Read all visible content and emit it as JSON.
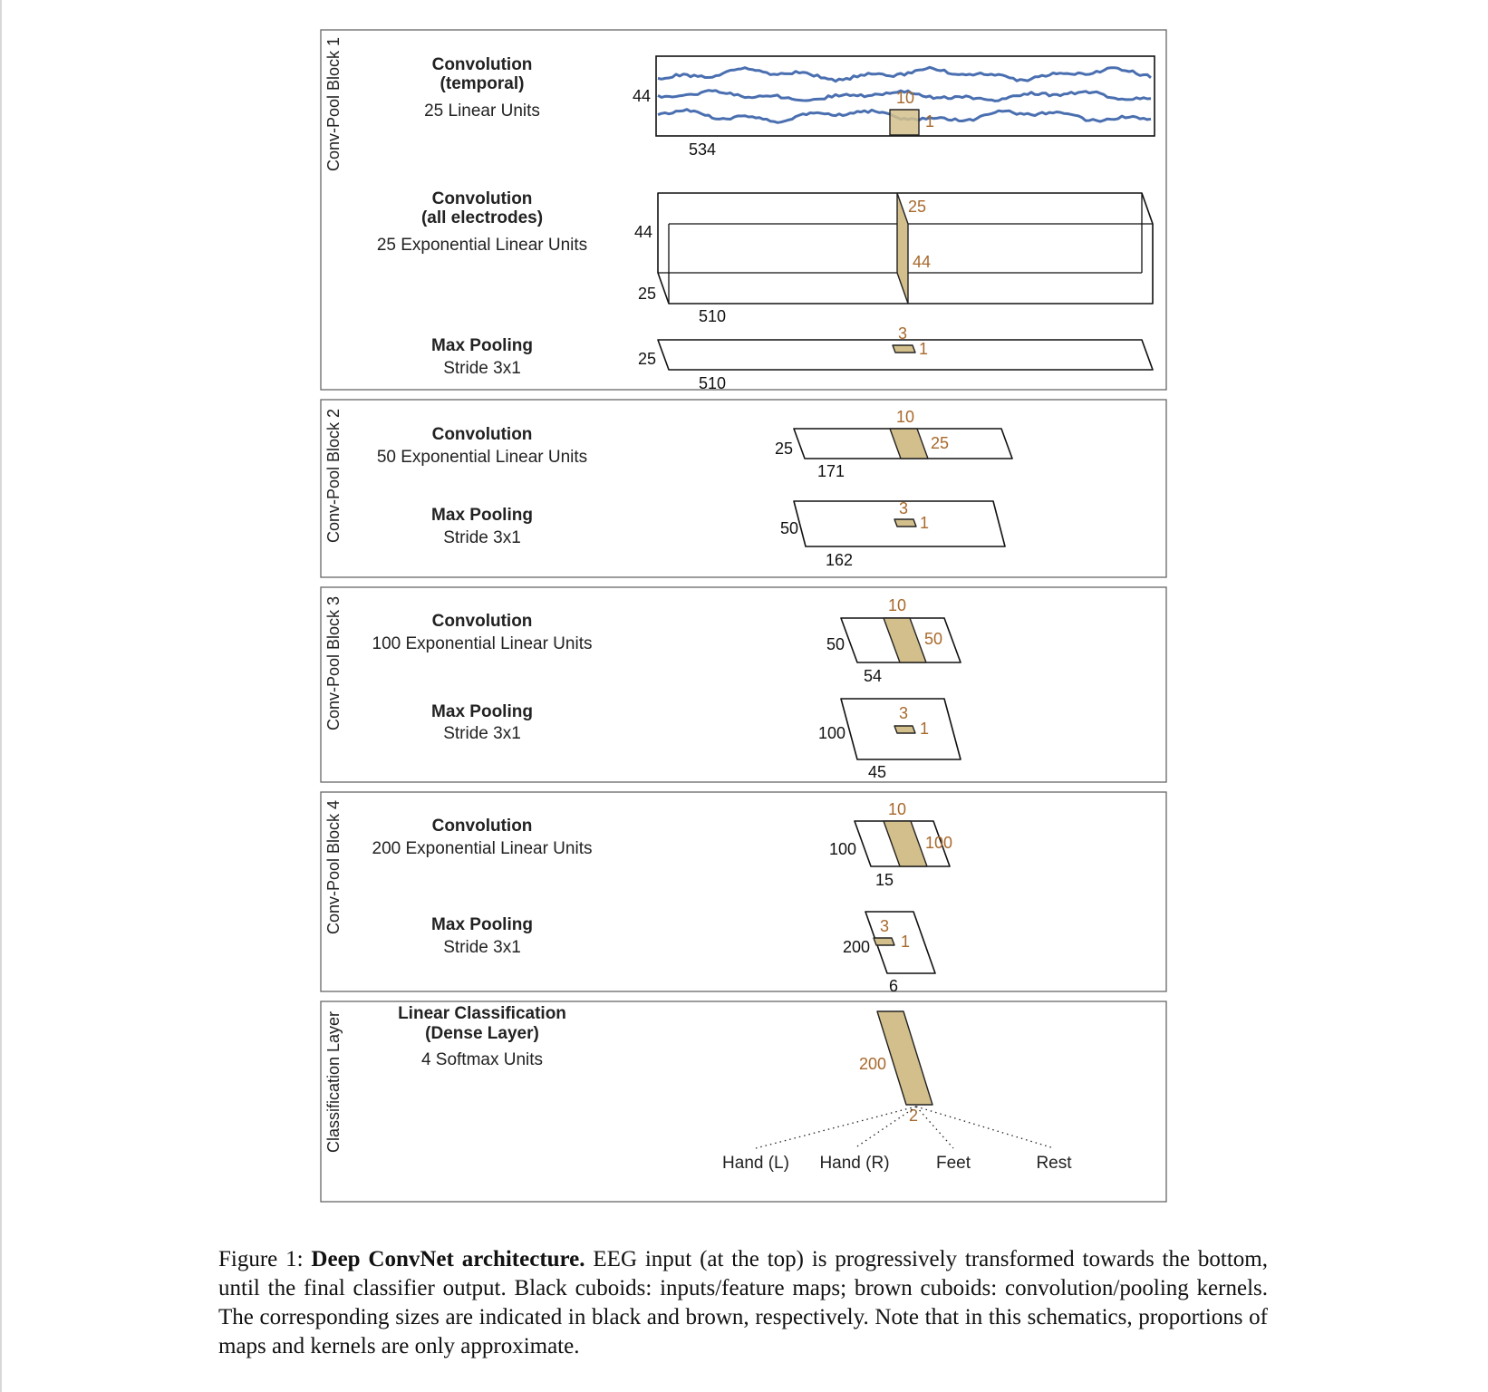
{
  "blocks": [
    {
      "label": "Conv-Pool Block 1"
    },
    {
      "label": "Conv-Pool Block 2"
    },
    {
      "label": "Conv-Pool Block 3"
    },
    {
      "label": "Conv-Pool Block 4"
    },
    {
      "label": "Classification Layer"
    }
  ],
  "layers": {
    "b1_conv_temporal": {
      "title_line1": "Convolution",
      "title_line2": "(temporal)",
      "units": "25 Linear Units"
    },
    "b1_conv_all": {
      "title_line1": "Convolution",
      "title_line2": "(all electrodes)",
      "units": "25 Exponential Linear Units"
    },
    "b1_pool": {
      "title": "Max Pooling",
      "stride": "Stride 3x1"
    },
    "b2_conv": {
      "title": "Convolution",
      "units": "50 Exponential Linear Units"
    },
    "b2_pool": {
      "title": "Max Pooling",
      "stride": "Stride 3x1"
    },
    "b3_conv": {
      "title": "Convolution",
      "units": "100 Exponential Linear  Units"
    },
    "b3_pool": {
      "title": "Max Pooling",
      "stride": "Stride 3x1"
    },
    "b4_conv": {
      "title": "Convolution",
      "units": "200 Exponential Linear Units"
    },
    "b4_pool": {
      "title": "Max Pooling",
      "stride": "Stride 3x1"
    },
    "classifier": {
      "title_line1": "Linear Classification",
      "title_line2": "(Dense Layer)",
      "units": "4 Softmax Units"
    }
  },
  "sizes": {
    "input_h": "44",
    "input_w": "534",
    "k1_w": "10",
    "k1_h": "1",
    "c2_h": "44",
    "c2_d": "25",
    "c2_w": "510",
    "k2_d": "25",
    "k2_h": "44",
    "p1_d": "25",
    "p1_w": "510",
    "pk1_w": "3",
    "pk1_h": "1",
    "c3_d": "25",
    "c3_w": "171",
    "k3_w": "10",
    "k3_d": "25",
    "p2_d": "50",
    "p2_w": "162",
    "pk2_w": "3",
    "pk2_h": "1",
    "c4_d": "50",
    "c4_w": "54",
    "k4_w": "10",
    "k4_d": "50",
    "p3_d": "100",
    "p3_w": "45",
    "pk3_w": "3",
    "pk3_h": "1",
    "c5_d": "100",
    "c5_w": "15",
    "k5_w": "10",
    "k5_d": "100",
    "p4_d": "200",
    "p4_w": "6",
    "pk4_w": "3",
    "pk4_h": "1",
    "dense_d": "200",
    "dense_w": "2"
  },
  "classes": [
    "Hand (L)",
    "Hand (R)",
    "Feet",
    "Rest"
  ],
  "caption": {
    "prefix": "Figure 1: ",
    "bold": "Deep ConvNet architecture.",
    "text": " EEG input (at the top) is progressively transformed towards the bottom, until the final classifier output. Black cuboids: inputs/feature maps; brown cuboids: convolution/pooling kernels. The corresponding sizes are indicated in black and brown, respectively. Note that in this schematics, proportions of maps and kernels are only approximate."
  },
  "colors": {
    "kernel_fill": "#d3bf8c",
    "kernel_label": "#a8692c",
    "eeg_trace": "#4a6fb0",
    "panel_border": "#666666"
  }
}
